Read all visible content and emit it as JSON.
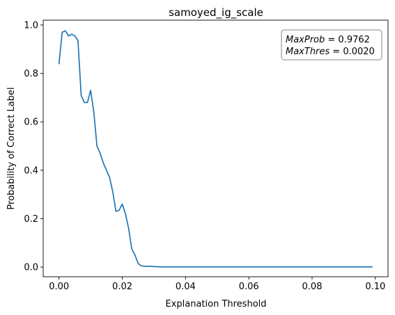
{
  "chart_data": {
    "type": "line",
    "title": "samoyed_ig_scale",
    "xlabel": "Explanation Threshold",
    "ylabel": "Probability of Correct Label",
    "xlim": [
      -0.005,
      0.104
    ],
    "ylim": [
      -0.04,
      1.02
    ],
    "x_ticks": [
      0.0,
      0.02,
      0.04,
      0.06,
      0.08,
      0.1
    ],
    "x_tick_labels": [
      "0.00",
      "0.02",
      "0.04",
      "0.06",
      "0.08",
      "0.10"
    ],
    "y_ticks": [
      0.0,
      0.2,
      0.4,
      0.6,
      0.8,
      1.0
    ],
    "y_tick_labels": [
      "0.0",
      "0.2",
      "0.4",
      "0.6",
      "0.8",
      "1.0"
    ],
    "grid": false,
    "line_color": "#1f77b4",
    "annotation": {
      "placement": "top-right",
      "line1_name": "MaxProb",
      "line1_eq": " = 0.9762",
      "line2_name": "MaxThres",
      "line2_eq": " = 0.0020"
    },
    "series": [
      {
        "x": [
          0.0,
          0.001,
          0.002,
          0.003,
          0.004,
          0.005,
          0.006,
          0.007,
          0.008,
          0.009,
          0.01,
          0.011,
          0.012,
          0.013,
          0.014,
          0.015,
          0.016,
          0.017,
          0.018,
          0.019,
          0.02,
          0.021,
          0.022,
          0.023,
          0.024,
          0.025,
          0.026,
          0.027,
          0.028,
          0.029,
          0.03,
          0.032,
          0.035,
          0.04,
          0.045,
          0.05,
          0.055,
          0.06,
          0.065,
          0.07,
          0.075,
          0.08,
          0.085,
          0.09,
          0.095,
          0.099
        ],
        "y": [
          0.84,
          0.97,
          0.976,
          0.955,
          0.962,
          0.955,
          0.935,
          0.71,
          0.68,
          0.68,
          0.73,
          0.64,
          0.5,
          0.47,
          0.43,
          0.4,
          0.37,
          0.31,
          0.23,
          0.235,
          0.26,
          0.22,
          0.16,
          0.075,
          0.05,
          0.015,
          0.005,
          0.003,
          0.003,
          0.003,
          0.002,
          0.001,
          0.001,
          0.001,
          0.001,
          0.001,
          0.001,
          0.001,
          0.001,
          0.001,
          0.001,
          0.001,
          0.001,
          0.001,
          0.001,
          0.001
        ]
      }
    ]
  }
}
